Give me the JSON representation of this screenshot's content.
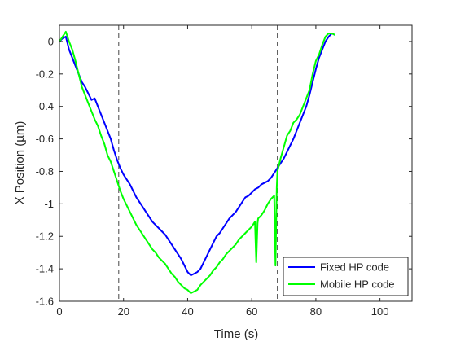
{
  "chart_data": {
    "type": "line",
    "xlabel": "Time (s)",
    "ylabel": "X Position (µm)",
    "xlim": [
      0,
      110
    ],
    "ylim": [
      -1.6,
      0.1
    ],
    "xticks": [
      0,
      20,
      40,
      60,
      80,
      100
    ],
    "xtick_labels": [
      "0",
      "20",
      "40",
      "60",
      "80",
      "100"
    ],
    "yticks": [
      0,
      -0.2,
      -0.4,
      -0.6,
      -0.8,
      -1,
      -1.2,
      -1.4,
      -1.6
    ],
    "ytick_labels": [
      "0",
      "-0.2",
      "-0.4",
      "-0.6",
      "-0.8",
      "-1",
      "-1.2",
      "-1.4",
      "-1.6"
    ],
    "grid": false,
    "legend_position": "bottom-right",
    "vertical_lines": [
      18.5,
      68
    ],
    "series": [
      {
        "name": "Fixed HP code",
        "color": "#0000ff",
        "x": [
          0,
          1,
          2,
          3,
          4,
          5,
          6,
          7,
          8,
          9,
          10,
          11,
          12,
          13,
          14,
          15,
          16,
          17,
          18,
          19,
          20,
          21,
          22,
          23,
          24,
          25,
          26,
          27,
          28,
          29,
          30,
          31,
          32,
          33,
          34,
          35,
          36,
          37,
          38,
          39,
          40,
          41,
          42,
          43,
          44,
          45,
          46,
          47,
          48,
          49,
          50,
          51,
          52,
          53,
          54,
          55,
          56,
          57,
          58,
          59,
          60,
          61,
          62,
          63,
          64,
          65,
          66,
          67,
          68,
          69,
          70,
          71,
          72,
          73,
          74,
          75,
          76,
          77,
          78,
          79,
          80,
          81,
          82,
          83,
          84,
          85,
          86
        ],
        "y": [
          0.0,
          0.02,
          0.03,
          -0.05,
          -0.1,
          -0.15,
          -0.2,
          -0.25,
          -0.28,
          -0.32,
          -0.36,
          -0.35,
          -0.4,
          -0.45,
          -0.5,
          -0.55,
          -0.6,
          -0.67,
          -0.73,
          -0.78,
          -0.82,
          -0.85,
          -0.88,
          -0.92,
          -0.96,
          -0.99,
          -1.02,
          -1.05,
          -1.08,
          -1.11,
          -1.13,
          -1.15,
          -1.17,
          -1.19,
          -1.22,
          -1.25,
          -1.28,
          -1.31,
          -1.34,
          -1.38,
          -1.42,
          -1.44,
          -1.43,
          -1.42,
          -1.4,
          -1.36,
          -1.32,
          -1.28,
          -1.24,
          -1.2,
          -1.18,
          -1.15,
          -1.12,
          -1.09,
          -1.07,
          -1.05,
          -1.02,
          -0.99,
          -0.96,
          -0.95,
          -0.93,
          -0.91,
          -0.9,
          -0.88,
          -0.87,
          -0.86,
          -0.84,
          -0.81,
          -0.78,
          -0.75,
          -0.72,
          -0.68,
          -0.64,
          -0.6,
          -0.55,
          -0.5,
          -0.45,
          -0.4,
          -0.33,
          -0.25,
          -0.17,
          -0.1,
          -0.05,
          0.0,
          0.03,
          0.05,
          0.04
        ]
      },
      {
        "name": "Mobile HP code",
        "color": "#00ff00",
        "x": [
          0,
          1,
          2,
          3,
          4,
          5,
          6,
          7,
          8,
          9,
          10,
          11,
          12,
          13,
          14,
          15,
          16,
          17,
          18,
          19,
          20,
          21,
          22,
          23,
          24,
          25,
          26,
          27,
          28,
          29,
          30,
          31,
          32,
          33,
          34,
          35,
          36,
          37,
          38,
          39,
          40,
          41,
          42,
          43,
          44,
          45,
          46,
          47,
          48,
          49,
          50,
          51,
          52,
          53,
          54,
          55,
          56,
          57,
          58,
          59,
          60,
          61,
          61.4,
          61.8,
          62,
          63,
          64,
          65,
          66,
          67,
          67.4,
          67.8,
          68,
          69,
          70,
          71,
          72,
          73,
          74,
          75,
          76,
          77,
          78,
          79,
          80,
          81,
          82,
          83,
          84,
          85,
          86
        ],
        "y": [
          0.0,
          0.03,
          0.06,
          0.0,
          -0.05,
          -0.12,
          -0.2,
          -0.28,
          -0.33,
          -0.38,
          -0.43,
          -0.48,
          -0.52,
          -0.58,
          -0.63,
          -0.7,
          -0.74,
          -0.8,
          -0.86,
          -0.92,
          -0.97,
          -1.01,
          -1.05,
          -1.09,
          -1.13,
          -1.16,
          -1.19,
          -1.22,
          -1.25,
          -1.28,
          -1.3,
          -1.33,
          -1.35,
          -1.37,
          -1.4,
          -1.43,
          -1.45,
          -1.48,
          -1.5,
          -1.52,
          -1.53,
          -1.55,
          -1.54,
          -1.53,
          -1.5,
          -1.48,
          -1.46,
          -1.44,
          -1.41,
          -1.39,
          -1.36,
          -1.34,
          -1.31,
          -1.29,
          -1.27,
          -1.25,
          -1.22,
          -1.2,
          -1.18,
          -1.16,
          -1.14,
          -1.11,
          -1.36,
          -1.12,
          -1.09,
          -1.07,
          -1.04,
          -1.0,
          -0.97,
          -0.95,
          -1.38,
          -0.9,
          -0.8,
          -0.72,
          -0.65,
          -0.58,
          -0.55,
          -0.5,
          -0.48,
          -0.45,
          -0.4,
          -0.35,
          -0.3,
          -0.2,
          -0.12,
          -0.08,
          -0.02,
          0.03,
          0.05,
          0.05,
          0.04
        ]
      }
    ]
  }
}
